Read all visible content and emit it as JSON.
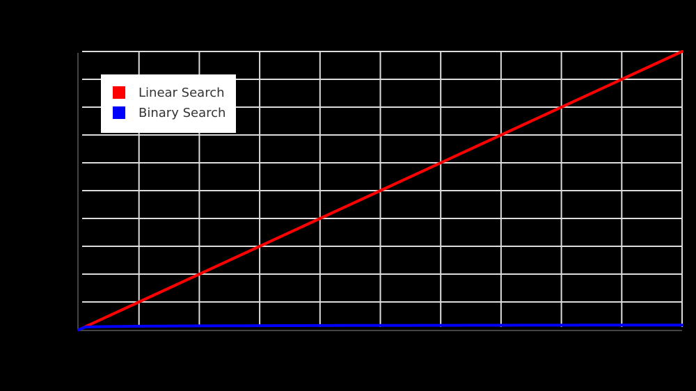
{
  "chart_data": {
    "type": "line",
    "title": "",
    "xlabel": "",
    "ylabel": "",
    "x": [
      0,
      1,
      2,
      3,
      4,
      5,
      6,
      7,
      8,
      9,
      10
    ],
    "xlim": [
      0,
      10
    ],
    "ylim": [
      0,
      10
    ],
    "grid": true,
    "legend_position": "top-left",
    "series": [
      {
        "name": "Linear Search",
        "color": "#ff0000",
        "values": [
          0,
          1,
          2,
          3,
          4,
          5,
          6,
          7,
          8,
          9,
          10
        ]
      },
      {
        "name": "Binary Search",
        "color": "#0000ff",
        "values": [
          0,
          0.08,
          0.1,
          0.11,
          0.12,
          0.13,
          0.14,
          0.14,
          0.15,
          0.16,
          0.17
        ]
      }
    ]
  },
  "legend": {
    "items": [
      {
        "label": "Linear Search",
        "color": "#ff0000"
      },
      {
        "label": "Binary Search",
        "color": "#0000ff"
      }
    ]
  },
  "colors": {
    "background": "#000000",
    "grid": "#dddddd",
    "axis": "#444444",
    "legend_bg": "#ffffff",
    "legend_text": "#333333"
  }
}
